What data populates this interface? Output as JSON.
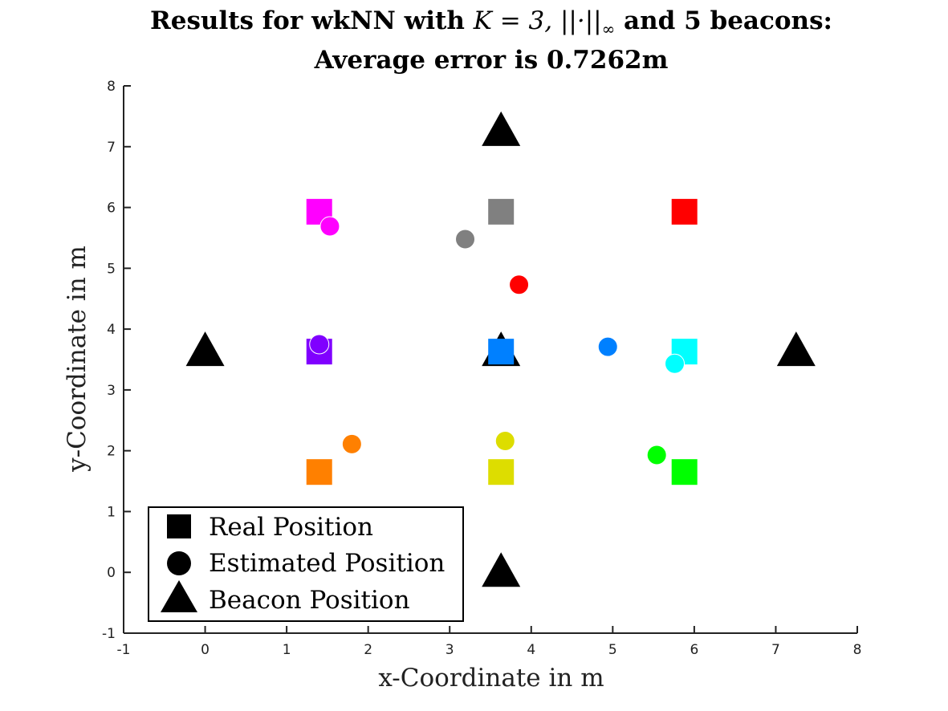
{
  "chart_data": {
    "type": "scatter",
    "title_line1_prefix": "Results for wkNN with ",
    "title_line1_math": "K = 3, ||·||",
    "title_line1_sub": "∞",
    "title_line1_suffix": " and 5 beacons:",
    "title_line2": "Average error is 0.7262m",
    "xlabel": "x-Coordinate in m",
    "ylabel": "y-Coordinate in m",
    "xlim": [
      -1,
      8
    ],
    "ylim": [
      -1,
      8
    ],
    "xticks": [
      "-1",
      "0",
      "1",
      "2",
      "3",
      "4",
      "5",
      "6",
      "7",
      "8"
    ],
    "yticks": [
      "-1",
      "0",
      "1",
      "2",
      "3",
      "4",
      "5",
      "6",
      "7",
      "8"
    ],
    "grid": false,
    "legend_placement": "bottom-left",
    "legend": [
      "Real Position",
      "Estimated Position",
      "Beacon Position"
    ],
    "real_positions": [
      {
        "x": 1.4,
        "y": 5.93,
        "color": "#ff00ff"
      },
      {
        "x": 3.63,
        "y": 5.93,
        "color": "#808080"
      },
      {
        "x": 5.88,
        "y": 5.93,
        "color": "#ff0000"
      },
      {
        "x": 1.4,
        "y": 3.63,
        "color": "#8000ff"
      },
      {
        "x": 3.63,
        "y": 3.63,
        "color": "#0080ff"
      },
      {
        "x": 5.88,
        "y": 3.63,
        "color": "#00ffff"
      },
      {
        "x": 1.4,
        "y": 1.65,
        "color": "#ff8000"
      },
      {
        "x": 3.63,
        "y": 1.65,
        "color": "#dddd00"
      },
      {
        "x": 5.88,
        "y": 1.65,
        "color": "#00ff00"
      }
    ],
    "estimated_positions": [
      {
        "x": 1.53,
        "y": 5.69,
        "color": "#ff00ff"
      },
      {
        "x": 3.19,
        "y": 5.48,
        "color": "#808080"
      },
      {
        "x": 3.85,
        "y": 4.73,
        "color": "#ff0000"
      },
      {
        "x": 1.4,
        "y": 3.75,
        "color": "#8000ff"
      },
      {
        "x": 4.94,
        "y": 3.71,
        "color": "#0080ff"
      },
      {
        "x": 5.76,
        "y": 3.43,
        "color": "#00ffff"
      },
      {
        "x": 1.8,
        "y": 2.11,
        "color": "#ff8000"
      },
      {
        "x": 3.68,
        "y": 2.16,
        "color": "#dddd00"
      },
      {
        "x": 5.54,
        "y": 1.93,
        "color": "#00ff00"
      }
    ],
    "beacons": [
      {
        "x": 3.63,
        "y": 7.25
      },
      {
        "x": 0.0,
        "y": 3.63
      },
      {
        "x": 3.63,
        "y": 3.63
      },
      {
        "x": 7.25,
        "y": 3.63
      },
      {
        "x": 3.63,
        "y": 0.0
      }
    ]
  }
}
